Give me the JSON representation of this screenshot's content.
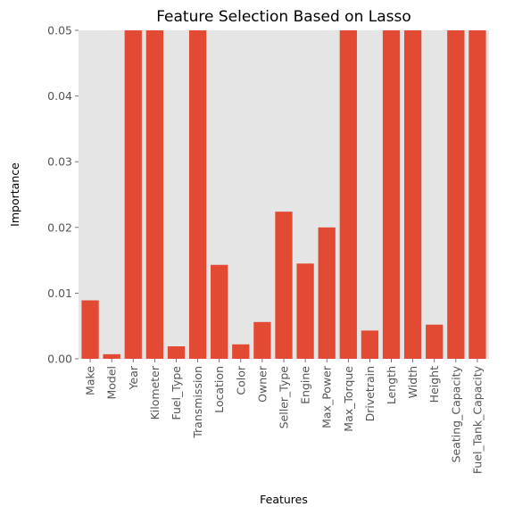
{
  "chart_data": {
    "type": "bar",
    "title": "Feature Selection Based on Lasso",
    "xlabel": "Features",
    "ylabel": "Importance",
    "ylim": [
      0,
      0.05
    ],
    "yticks": [
      "0.00",
      "0.01",
      "0.02",
      "0.03",
      "0.04",
      "0.05"
    ],
    "grid": false,
    "categories": [
      "Make",
      "Model",
      "Year",
      "Kilometer",
      "Fuel_Type",
      "Transmission",
      "Location",
      "Color",
      "Owner",
      "Seller_Type",
      "Engine",
      "Max_Power",
      "Max_Torque",
      "Drivetrain",
      "Length",
      "Width",
      "Height",
      "Seating_Capacity",
      "Fuel_Tank_Capacity"
    ],
    "values": [
      0.0089,
      0.0007,
      0.05,
      0.05,
      0.0019,
      0.05,
      0.0143,
      0.0022,
      0.0056,
      0.0224,
      0.0145,
      0.02,
      0.05,
      0.0043,
      0.05,
      0.05,
      0.0052,
      0.05,
      0.05
    ],
    "colors": {
      "bar": "#e24a33",
      "plot_bg": "#e5e5e5"
    }
  }
}
